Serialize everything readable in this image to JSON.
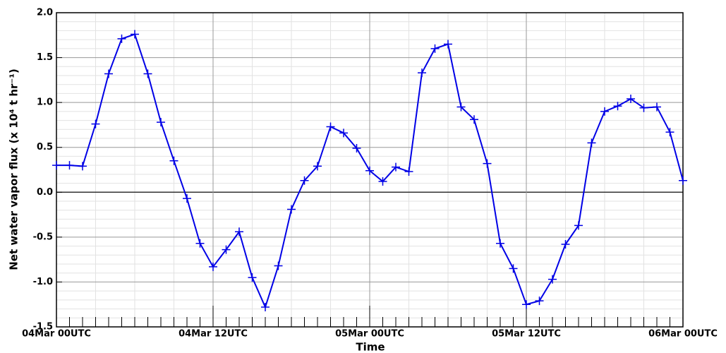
{
  "chart_data": {
    "type": "line",
    "xlabel": "Time",
    "ylabel": "Net water vapor flux (x 10⁴ t hr⁻¹)",
    "x": [
      0,
      1,
      2,
      3,
      4,
      5,
      6,
      7,
      8,
      9,
      10,
      11,
      12,
      13,
      14,
      15,
      16,
      17,
      18,
      19,
      20,
      21,
      22,
      23,
      24,
      25,
      26,
      27,
      28,
      29,
      30,
      31,
      32,
      33,
      34,
      35,
      36,
      37,
      38,
      39,
      40,
      41,
      42,
      43,
      44,
      45,
      46,
      47,
      48
    ],
    "series": [
      {
        "name": "Net water vapor flux",
        "color": "#0000e6",
        "values": [
          0.3,
          0.3,
          0.29,
          0.76,
          1.32,
          1.71,
          1.76,
          1.32,
          0.78,
          0.35,
          -0.07,
          -0.57,
          -0.83,
          -0.64,
          -0.44,
          -0.95,
          -1.28,
          -0.82,
          -0.19,
          0.13,
          0.29,
          0.73,
          0.66,
          0.49,
          0.24,
          0.12,
          0.28,
          0.23,
          1.33,
          1.6,
          1.65,
          0.95,
          0.81,
          0.32,
          -0.57,
          -0.85,
          -1.25,
          -1.21,
          -0.97,
          -0.58,
          -0.37,
          0.55,
          0.9,
          0.96,
          1.04,
          0.94,
          0.95,
          0.67,
          0.13
        ]
      }
    ],
    "xlim": [
      0,
      48
    ],
    "xticks": [
      {
        "value": 0,
        "label": "04Mar 00UTC"
      },
      {
        "value": 12,
        "label": "04Mar 12UTC"
      },
      {
        "value": 24,
        "label": "05Mar 00UTC"
      },
      {
        "value": 36,
        "label": "05Mar 12UTC"
      },
      {
        "value": 48,
        "label": "06Mar 00UTC"
      }
    ],
    "ylim": [
      -1.5,
      2.0
    ],
    "yticks": [
      -1.5,
      {
        "value": -1.0,
        "label": "-1.0"
      },
      -0.5,
      {
        "value": 0,
        "label": "0.0"
      },
      0.5,
      {
        "value": 1.0,
        "label": "1.0"
      },
      1.5,
      {
        "value": 2.0,
        "label": "2.0"
      }
    ],
    "grid": true
  }
}
